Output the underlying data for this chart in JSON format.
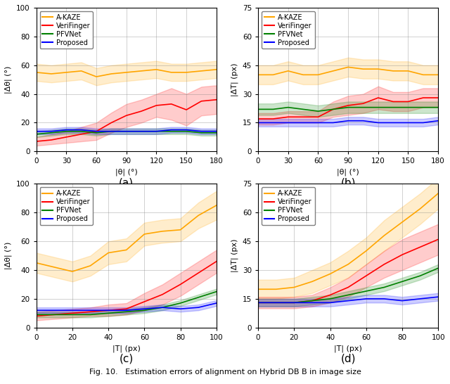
{
  "colors": {
    "akaze": "#FFA500",
    "verifinger": "#FF0000",
    "pfvnet": "#008000",
    "proposed": "#0000FF"
  },
  "alpha_fill": 0.2,
  "subplot_labels": [
    "(a)",
    "(b)",
    "(c)",
    "(d)"
  ],
  "legend_labels": [
    "A-KAZE",
    "VeriFinger",
    "PFVNet",
    "Proposed"
  ],
  "fig_caption": "Fig. 10.   Estimation errors of alignment on Hybrid DB B in image size",
  "plot_a": {
    "xlabel": "|θ| (°)",
    "ylabel": "|Δθ| (°)",
    "xlim": [
      0,
      180
    ],
    "ylim": [
      0,
      100
    ],
    "xticks": [
      0,
      30,
      60,
      90,
      120,
      150,
      180
    ],
    "yticks": [
      0,
      20,
      40,
      60,
      80,
      100
    ],
    "x": [
      0,
      15,
      30,
      45,
      60,
      75,
      90,
      105,
      120,
      135,
      150,
      165,
      180
    ],
    "akaze_y": [
      55,
      54,
      55,
      56,
      52,
      54,
      55,
      56,
      57,
      55,
      55,
      56,
      57
    ],
    "akaze_lo": [
      49,
      48,
      49,
      50,
      46,
      48,
      49,
      50,
      51,
      49,
      49,
      50,
      51
    ],
    "akaze_hi": [
      61,
      60,
      61,
      62,
      58,
      60,
      61,
      62,
      63,
      61,
      61,
      62,
      63
    ],
    "verifinger_y": [
      7,
      8,
      10,
      12,
      14,
      20,
      25,
      28,
      32,
      33,
      29,
      35,
      36
    ],
    "verifinger_lo": [
      4,
      5,
      6,
      7,
      8,
      13,
      17,
      20,
      24,
      22,
      18,
      25,
      26
    ],
    "verifinger_hi": [
      10,
      12,
      14,
      17,
      20,
      27,
      33,
      36,
      40,
      44,
      40,
      45,
      46
    ],
    "pfvnet_y": [
      12,
      13,
      14,
      14,
      13,
      14,
      14,
      14,
      14,
      14,
      14,
      13,
      13
    ],
    "pfvnet_lo": [
      10,
      11,
      12,
      12,
      11,
      12,
      12,
      12,
      12,
      12,
      12,
      11,
      11
    ],
    "pfvnet_hi": [
      14,
      15,
      16,
      16,
      15,
      16,
      16,
      16,
      16,
      16,
      16,
      15,
      15
    ],
    "proposed_y": [
      14,
      14,
      15,
      15,
      14,
      14,
      14,
      14,
      14,
      15,
      15,
      14,
      14
    ],
    "proposed_lo": [
      12,
      12,
      13,
      13,
      12,
      12,
      12,
      12,
      12,
      13,
      13,
      12,
      12
    ],
    "proposed_hi": [
      16,
      16,
      17,
      17,
      16,
      16,
      16,
      16,
      16,
      17,
      17,
      16,
      16
    ]
  },
  "plot_b": {
    "xlabel": "|θ| (°)",
    "ylabel": "|ΔT| (px)",
    "xlim": [
      0,
      180
    ],
    "ylim": [
      0,
      75
    ],
    "xticks": [
      0,
      30,
      60,
      90,
      120,
      150,
      180
    ],
    "yticks": [
      0,
      15,
      30,
      45,
      60,
      75
    ],
    "x": [
      0,
      15,
      30,
      45,
      60,
      75,
      90,
      105,
      120,
      135,
      150,
      165,
      180
    ],
    "akaze_y": [
      40,
      40,
      42,
      40,
      40,
      42,
      44,
      43,
      43,
      42,
      42,
      40,
      40
    ],
    "akaze_lo": [
      35,
      35,
      37,
      35,
      35,
      37,
      39,
      38,
      38,
      37,
      37,
      35,
      35
    ],
    "akaze_hi": [
      45,
      45,
      47,
      45,
      45,
      47,
      49,
      48,
      48,
      47,
      47,
      45,
      45
    ],
    "verifinger_y": [
      17,
      17,
      18,
      18,
      18,
      22,
      24,
      25,
      28,
      26,
      26,
      28,
      28
    ],
    "verifinger_lo": [
      14,
      14,
      15,
      15,
      15,
      18,
      19,
      20,
      22,
      21,
      21,
      23,
      23
    ],
    "verifinger_hi": [
      20,
      20,
      21,
      21,
      21,
      26,
      29,
      30,
      34,
      31,
      31,
      33,
      33
    ],
    "pfvnet_y": [
      22,
      22,
      23,
      22,
      21,
      22,
      23,
      23,
      23,
      23,
      23,
      23,
      23
    ],
    "pfvnet_lo": [
      19,
      19,
      20,
      19,
      18,
      19,
      20,
      20,
      20,
      20,
      20,
      20,
      20
    ],
    "pfvnet_hi": [
      25,
      25,
      26,
      25,
      24,
      25,
      26,
      26,
      26,
      26,
      26,
      26,
      26
    ],
    "proposed_y": [
      15,
      15,
      15,
      15,
      15,
      15,
      16,
      16,
      15,
      15,
      15,
      15,
      16
    ],
    "proposed_lo": [
      13,
      13,
      13,
      13,
      13,
      13,
      14,
      14,
      13,
      13,
      13,
      13,
      14
    ],
    "proposed_hi": [
      17,
      17,
      17,
      17,
      17,
      17,
      18,
      18,
      17,
      17,
      17,
      17,
      18
    ]
  },
  "plot_c": {
    "xlabel": "|T| (px)",
    "ylabel": "|Δθ| (°)",
    "xlim": [
      0,
      100
    ],
    "ylim": [
      0,
      100
    ],
    "xticks": [
      0,
      20,
      40,
      60,
      80,
      100
    ],
    "yticks": [
      0,
      20,
      40,
      60,
      80,
      100
    ],
    "x": [
      0,
      10,
      20,
      30,
      40,
      50,
      60,
      70,
      80,
      90,
      100
    ],
    "akaze_y": [
      45,
      42,
      39,
      43,
      52,
      54,
      65,
      67,
      68,
      78,
      85
    ],
    "akaze_lo": [
      38,
      35,
      32,
      36,
      44,
      46,
      57,
      59,
      60,
      69,
      75
    ],
    "akaze_hi": [
      52,
      49,
      46,
      50,
      60,
      62,
      73,
      75,
      76,
      87,
      95
    ],
    "verifinger_y": [
      8,
      9,
      10,
      11,
      12,
      13,
      18,
      23,
      30,
      38,
      46
    ],
    "verifinger_lo": [
      5,
      6,
      7,
      8,
      8,
      9,
      12,
      16,
      22,
      30,
      38
    ],
    "verifinger_hi": [
      11,
      12,
      13,
      14,
      16,
      17,
      24,
      30,
      38,
      46,
      54
    ],
    "pfvnet_y": [
      9,
      9,
      9,
      9,
      10,
      11,
      12,
      14,
      17,
      21,
      25
    ],
    "pfvnet_lo": [
      7,
      7,
      7,
      7,
      8,
      9,
      10,
      12,
      15,
      19,
      23
    ],
    "pfvnet_hi": [
      11,
      11,
      11,
      11,
      12,
      13,
      14,
      16,
      19,
      23,
      27
    ],
    "proposed_y": [
      12,
      12,
      12,
      12,
      12,
      12,
      13,
      14,
      13,
      14,
      17
    ],
    "proposed_lo": [
      10,
      10,
      10,
      10,
      10,
      10,
      11,
      12,
      11,
      12,
      15
    ],
    "proposed_hi": [
      14,
      14,
      14,
      14,
      14,
      14,
      15,
      16,
      15,
      16,
      19
    ]
  },
  "plot_d": {
    "xlabel": "|T| (px)",
    "ylabel": "|ΔT| (px)",
    "xlim": [
      0,
      100
    ],
    "ylim": [
      0,
      75
    ],
    "xticks": [
      0,
      20,
      40,
      60,
      80,
      100
    ],
    "yticks": [
      0,
      15,
      30,
      45,
      60,
      75
    ],
    "x": [
      0,
      10,
      20,
      30,
      40,
      50,
      60,
      70,
      80,
      90,
      100
    ],
    "akaze_y": [
      20,
      20,
      21,
      24,
      28,
      33,
      40,
      48,
      55,
      62,
      70
    ],
    "akaze_lo": [
      15,
      15,
      16,
      18,
      22,
      26,
      33,
      40,
      47,
      54,
      62
    ],
    "akaze_hi": [
      25,
      25,
      26,
      30,
      34,
      40,
      47,
      56,
      63,
      70,
      78
    ],
    "verifinger_y": [
      13,
      13,
      13,
      14,
      17,
      21,
      27,
      33,
      38,
      42,
      46
    ],
    "verifinger_lo": [
      10,
      10,
      10,
      11,
      13,
      16,
      21,
      26,
      30,
      34,
      38
    ],
    "verifinger_hi": [
      16,
      16,
      16,
      17,
      21,
      26,
      33,
      40,
      46,
      50,
      54
    ],
    "pfvnet_y": [
      13,
      13,
      13,
      14,
      15,
      17,
      19,
      21,
      24,
      27,
      31
    ],
    "pfvnet_lo": [
      11,
      11,
      11,
      12,
      13,
      15,
      17,
      19,
      22,
      25,
      29
    ],
    "pfvnet_hi": [
      15,
      15,
      15,
      16,
      17,
      19,
      21,
      23,
      26,
      29,
      33
    ],
    "proposed_y": [
      13,
      13,
      13,
      13,
      13,
      14,
      15,
      15,
      14,
      15,
      16
    ],
    "proposed_lo": [
      11,
      11,
      11,
      11,
      11,
      12,
      13,
      13,
      12,
      13,
      14
    ],
    "proposed_hi": [
      15,
      15,
      15,
      15,
      15,
      16,
      17,
      17,
      16,
      17,
      18
    ]
  }
}
